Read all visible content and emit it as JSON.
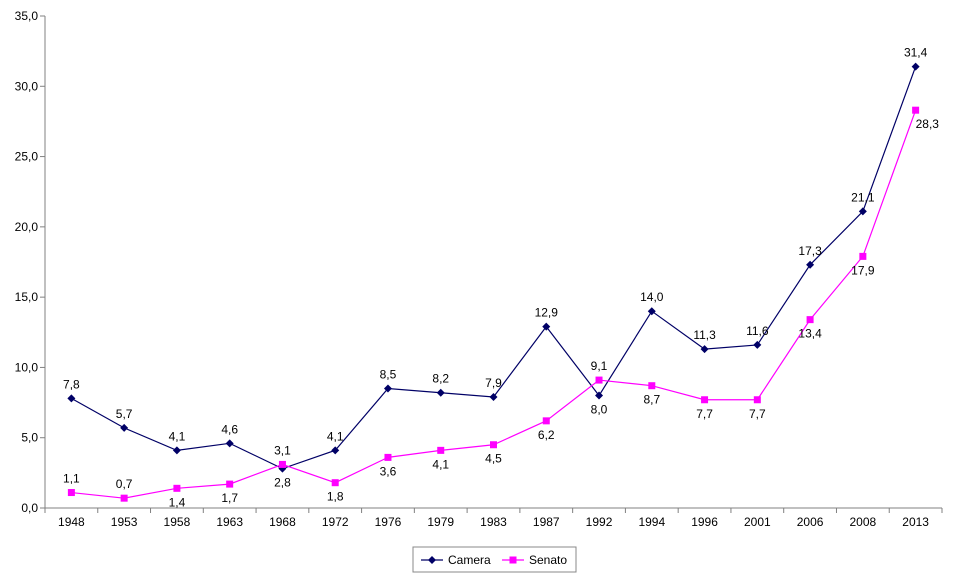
{
  "chart_data": {
    "type": "line",
    "categories": [
      "1948",
      "1953",
      "1958",
      "1963",
      "1968",
      "1972",
      "1976",
      "1979",
      "1983",
      "1987",
      "1992",
      "1994",
      "1996",
      "2001",
      "2006",
      "2008",
      "2013"
    ],
    "ylim": [
      0,
      35
    ],
    "y_ticks": [
      "0,0",
      "5,0",
      "10,0",
      "15,0",
      "20,0",
      "25,0",
      "30,0",
      "35,0"
    ],
    "y_tick_values": [
      0,
      5,
      10,
      15,
      20,
      25,
      30,
      35
    ],
    "grid": false,
    "legend_position": "bottom-center",
    "series": [
      {
        "name": "Camera",
        "color": "#000066",
        "marker": "diamond",
        "values": [
          7.8,
          5.7,
          4.1,
          4.6,
          2.8,
          4.1,
          8.5,
          8.2,
          7.9,
          12.9,
          8.0,
          14.0,
          11.3,
          11.6,
          17.3,
          21.1,
          31.4
        ],
        "labels": [
          "7,8",
          "5,7",
          "4,1",
          "4,6",
          "2,8",
          "4,1",
          "8,5",
          "8,2",
          "7,9",
          "12,9",
          "8,0",
          "14,0",
          "11,3",
          "11,6",
          "17,3",
          "21,1",
          "31,4"
        ]
      },
      {
        "name": "Senato",
        "color": "#ff00ff",
        "marker": "square",
        "values": [
          1.1,
          0.7,
          1.4,
          1.7,
          3.1,
          1.8,
          3.6,
          4.1,
          4.5,
          6.2,
          9.1,
          8.7,
          7.7,
          7.7,
          13.4,
          17.9,
          28.3
        ],
        "labels": [
          "1,1",
          "0,7",
          "1,4",
          "1,7",
          "3,1",
          "1,8",
          "3,6",
          "4,1",
          "4,5",
          "6,2",
          "9,1",
          "8,7",
          "7,7",
          "7,7",
          "13,4",
          "17,9",
          "28,3"
        ]
      }
    ]
  }
}
